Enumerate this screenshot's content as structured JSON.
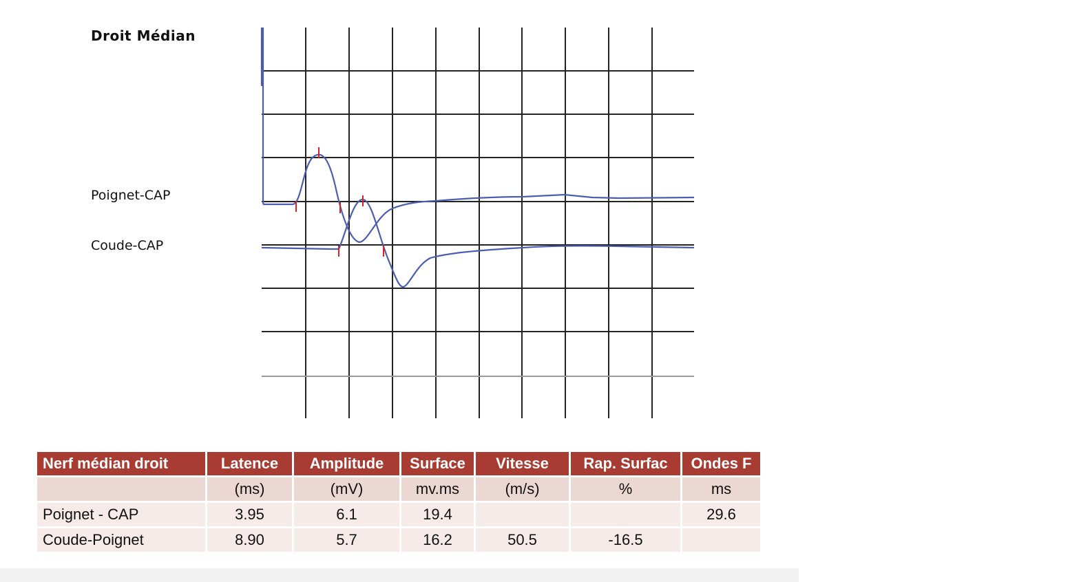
{
  "header": {
    "title": "Droit Médian"
  },
  "traces": {
    "labels": [
      "Poignet-CAP",
      "Coude-CAP"
    ]
  },
  "table": {
    "columns": [
      "Nerf médian droit",
      "Latence",
      "Amplitude",
      "Surface",
      "Vitesse",
      "Rap. Surfac",
      "Ondes F"
    ],
    "units": [
      "(ms)",
      "(mV)",
      "mv.ms",
      "(m/s)",
      "%",
      "ms"
    ],
    "rows": [
      [
        "Poignet - CAP",
        "3.95",
        "6.1",
        "19.4",
        null,
        null,
        "29.6"
      ],
      [
        "Coude-Poignet",
        "8.90",
        "5.7",
        "16.2",
        "50.5",
        "-16.5",
        null
      ]
    ]
  }
}
